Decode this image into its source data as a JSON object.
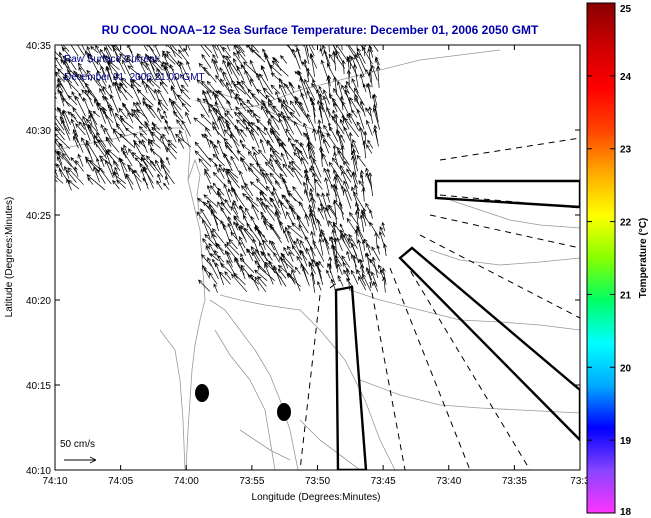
{
  "title": "RU COOL  NOAA−12  Sea Surface Temperature:  December 01, 2006 2050 GMT",
  "current_label": {
    "line1": "Raw Surface Current:",
    "line2": "December 01, 2006 21:00 GMT"
  },
  "scale_label": "50 cm/s",
  "map": {
    "x_axis": {
      "label": "Longitude (Degrees:Minutes)",
      "ticks": [
        "74:10",
        "74:05",
        "74:00",
        "73:55",
        "73:50",
        "73:45",
        "73:40",
        "73:35",
        "73:3"
      ]
    },
    "y_axis": {
      "label": "Latitude (Degrees:Minutes)",
      "ticks": [
        "40:35",
        "40:30",
        "40:25",
        "40:20",
        "40:15",
        "40:10"
      ]
    }
  },
  "colorbar": {
    "label": "Temperature (°C)",
    "min": 18,
    "max": 25,
    "ticks": [
      "25",
      "24",
      "23",
      "22",
      "21",
      "20",
      "19",
      "18"
    ],
    "colors": [
      "#ff33ff",
      "#8844ff",
      "#0000ff",
      "#00aaff",
      "#00ffff",
      "#00ff66",
      "#88ff00",
      "#ffff00",
      "#ffaa00",
      "#ff4400",
      "#ff0000",
      "#cc0000",
      "#880000"
    ]
  },
  "colors": {
    "title": "#0000aa",
    "annotation": "#000088",
    "contour": "#999999",
    "frame": "#000000"
  }
}
